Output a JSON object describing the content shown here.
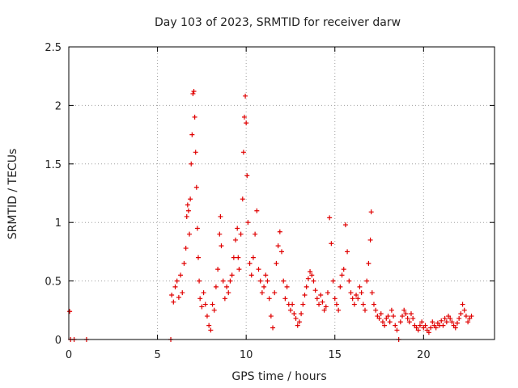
{
  "chart_data": {
    "type": "scatter",
    "title": "Day 103 of 2023, SRMTID for receiver darw",
    "xlabel": "GPS time / hours",
    "ylabel": "SRMTID / TECUs",
    "xlim": [
      0,
      24
    ],
    "ylim": [
      0,
      2.5
    ],
    "xticks": [
      0,
      5,
      10,
      15,
      20
    ],
    "yticks": [
      0,
      0.5,
      1,
      1.5,
      2,
      2.5
    ],
    "xtick_labels": [
      "0",
      "5",
      "10",
      "15",
      "20"
    ],
    "ytick_labels": [
      "0",
      "0.5",
      "1",
      "1.5",
      "2",
      "2.5"
    ],
    "grid": true,
    "marker": "+",
    "color": "#e00000",
    "series": [
      {
        "name": "SRMTID",
        "points": [
          [
            0.05,
            0.24
          ],
          [
            0.1,
            0.0
          ],
          [
            0.3,
            0.0
          ],
          [
            1.0,
            0.0
          ],
          [
            5.75,
            0.0
          ],
          [
            18.6,
            0.0
          ],
          [
            5.8,
            0.38
          ],
          [
            5.9,
            0.32
          ],
          [
            6.0,
            0.45
          ],
          [
            6.1,
            0.5
          ],
          [
            6.2,
            0.36
          ],
          [
            6.3,
            0.55
          ],
          [
            6.4,
            0.4
          ],
          [
            6.5,
            0.65
          ],
          [
            6.6,
            0.78
          ],
          [
            6.65,
            1.05
          ],
          [
            6.7,
            1.15
          ],
          [
            6.75,
            1.1
          ],
          [
            6.8,
            0.9
          ],
          [
            6.85,
            1.2
          ],
          [
            6.9,
            1.5
          ],
          [
            6.95,
            1.75
          ],
          [
            7.0,
            2.1
          ],
          [
            7.05,
            2.12
          ],
          [
            7.1,
            1.9
          ],
          [
            7.15,
            1.6
          ],
          [
            7.2,
            1.3
          ],
          [
            7.25,
            0.95
          ],
          [
            7.3,
            0.7
          ],
          [
            7.35,
            0.5
          ],
          [
            7.4,
            0.35
          ],
          [
            7.5,
            0.28
          ],
          [
            7.6,
            0.4
          ],
          [
            7.7,
            0.3
          ],
          [
            7.8,
            0.2
          ],
          [
            7.9,
            0.12
          ],
          [
            8.0,
            0.08
          ],
          [
            8.1,
            0.3
          ],
          [
            8.2,
            0.25
          ],
          [
            8.3,
            0.45
          ],
          [
            8.4,
            0.6
          ],
          [
            8.5,
            0.9
          ],
          [
            8.55,
            1.05
          ],
          [
            8.6,
            0.8
          ],
          [
            8.7,
            0.5
          ],
          [
            8.8,
            0.35
          ],
          [
            8.9,
            0.45
          ],
          [
            9.0,
            0.4
          ],
          [
            9.1,
            0.5
          ],
          [
            9.2,
            0.55
          ],
          [
            9.3,
            0.7
          ],
          [
            9.4,
            0.85
          ],
          [
            9.5,
            0.95
          ],
          [
            9.55,
            0.7
          ],
          [
            9.6,
            0.6
          ],
          [
            9.7,
            0.9
          ],
          [
            9.8,
            1.2
          ],
          [
            9.85,
            1.6
          ],
          [
            9.9,
            1.9
          ],
          [
            9.95,
            2.08
          ],
          [
            10.0,
            1.85
          ],
          [
            10.05,
            1.4
          ],
          [
            10.1,
            1.0
          ],
          [
            10.2,
            0.65
          ],
          [
            10.3,
            0.55
          ],
          [
            10.4,
            0.7
          ],
          [
            10.5,
            0.9
          ],
          [
            10.6,
            1.1
          ],
          [
            10.7,
            0.6
          ],
          [
            10.8,
            0.5
          ],
          [
            10.9,
            0.4
          ],
          [
            11.0,
            0.45
          ],
          [
            11.1,
            0.55
          ],
          [
            11.2,
            0.5
          ],
          [
            11.3,
            0.35
          ],
          [
            11.4,
            0.2
          ],
          [
            11.5,
            0.1
          ],
          [
            11.6,
            0.4
          ],
          [
            11.7,
            0.65
          ],
          [
            11.8,
            0.8
          ],
          [
            11.9,
            0.92
          ],
          [
            12.0,
            0.75
          ],
          [
            12.1,
            0.5
          ],
          [
            12.2,
            0.35
          ],
          [
            12.3,
            0.45
          ],
          [
            12.4,
            0.3
          ],
          [
            12.5,
            0.25
          ],
          [
            12.6,
            0.3
          ],
          [
            12.7,
            0.22
          ],
          [
            12.8,
            0.18
          ],
          [
            12.9,
            0.12
          ],
          [
            13.0,
            0.15
          ],
          [
            13.1,
            0.22
          ],
          [
            13.2,
            0.3
          ],
          [
            13.3,
            0.38
          ],
          [
            13.4,
            0.45
          ],
          [
            13.5,
            0.52
          ],
          [
            13.6,
            0.58
          ],
          [
            13.7,
            0.55
          ],
          [
            13.8,
            0.5
          ],
          [
            13.9,
            0.42
          ],
          [
            14.0,
            0.35
          ],
          [
            14.1,
            0.3
          ],
          [
            14.2,
            0.38
          ],
          [
            14.3,
            0.32
          ],
          [
            14.4,
            0.25
          ],
          [
            14.5,
            0.28
          ],
          [
            14.6,
            0.4
          ],
          [
            14.7,
            1.04
          ],
          [
            14.8,
            0.82
          ],
          [
            14.9,
            0.5
          ],
          [
            15.0,
            0.35
          ],
          [
            15.1,
            0.3
          ],
          [
            15.2,
            0.25
          ],
          [
            15.3,
            0.45
          ],
          [
            15.4,
            0.55
          ],
          [
            15.5,
            0.6
          ],
          [
            15.6,
            0.98
          ],
          [
            15.7,
            0.75
          ],
          [
            15.8,
            0.5
          ],
          [
            15.9,
            0.4
          ],
          [
            16.0,
            0.35
          ],
          [
            16.1,
            0.3
          ],
          [
            16.2,
            0.38
          ],
          [
            16.3,
            0.35
          ],
          [
            16.4,
            0.45
          ],
          [
            16.5,
            0.4
          ],
          [
            16.6,
            0.3
          ],
          [
            16.7,
            0.25
          ],
          [
            16.8,
            0.5
          ],
          [
            16.9,
            0.65
          ],
          [
            17.0,
            0.85
          ],
          [
            17.05,
            1.09
          ],
          [
            17.1,
            0.4
          ],
          [
            17.2,
            0.3
          ],
          [
            17.3,
            0.25
          ],
          [
            17.4,
            0.2
          ],
          [
            17.5,
            0.18
          ],
          [
            17.6,
            0.22
          ],
          [
            17.7,
            0.15
          ],
          [
            17.8,
            0.12
          ],
          [
            17.9,
            0.18
          ],
          [
            18.0,
            0.2
          ],
          [
            18.1,
            0.15
          ],
          [
            18.2,
            0.25
          ],
          [
            18.3,
            0.2
          ],
          [
            18.4,
            0.12
          ],
          [
            18.5,
            0.08
          ],
          [
            18.7,
            0.15
          ],
          [
            18.8,
            0.2
          ],
          [
            18.9,
            0.25
          ],
          [
            19.0,
            0.22
          ],
          [
            19.1,
            0.18
          ],
          [
            19.2,
            0.15
          ],
          [
            19.3,
            0.22
          ],
          [
            19.4,
            0.18
          ],
          [
            19.5,
            0.12
          ],
          [
            19.6,
            0.1
          ],
          [
            19.7,
            0.08
          ],
          [
            19.8,
            0.12
          ],
          [
            19.9,
            0.15
          ],
          [
            20.0,
            0.1
          ],
          [
            20.1,
            0.12
          ],
          [
            20.2,
            0.08
          ],
          [
            20.3,
            0.06
          ],
          [
            20.4,
            0.1
          ],
          [
            20.5,
            0.15
          ],
          [
            20.6,
            0.12
          ],
          [
            20.7,
            0.1
          ],
          [
            20.8,
            0.14
          ],
          [
            20.9,
            0.12
          ],
          [
            21.0,
            0.16
          ],
          [
            21.1,
            0.12
          ],
          [
            21.2,
            0.18
          ],
          [
            21.3,
            0.15
          ],
          [
            21.4,
            0.2
          ],
          [
            21.5,
            0.18
          ],
          [
            21.6,
            0.15
          ],
          [
            21.7,
            0.12
          ],
          [
            21.8,
            0.1
          ],
          [
            21.9,
            0.14
          ],
          [
            22.0,
            0.18
          ],
          [
            22.1,
            0.22
          ],
          [
            22.2,
            0.3
          ],
          [
            22.3,
            0.25
          ],
          [
            22.4,
            0.2
          ],
          [
            22.5,
            0.15
          ],
          [
            22.6,
            0.18
          ],
          [
            22.7,
            0.2
          ]
        ]
      }
    ]
  }
}
